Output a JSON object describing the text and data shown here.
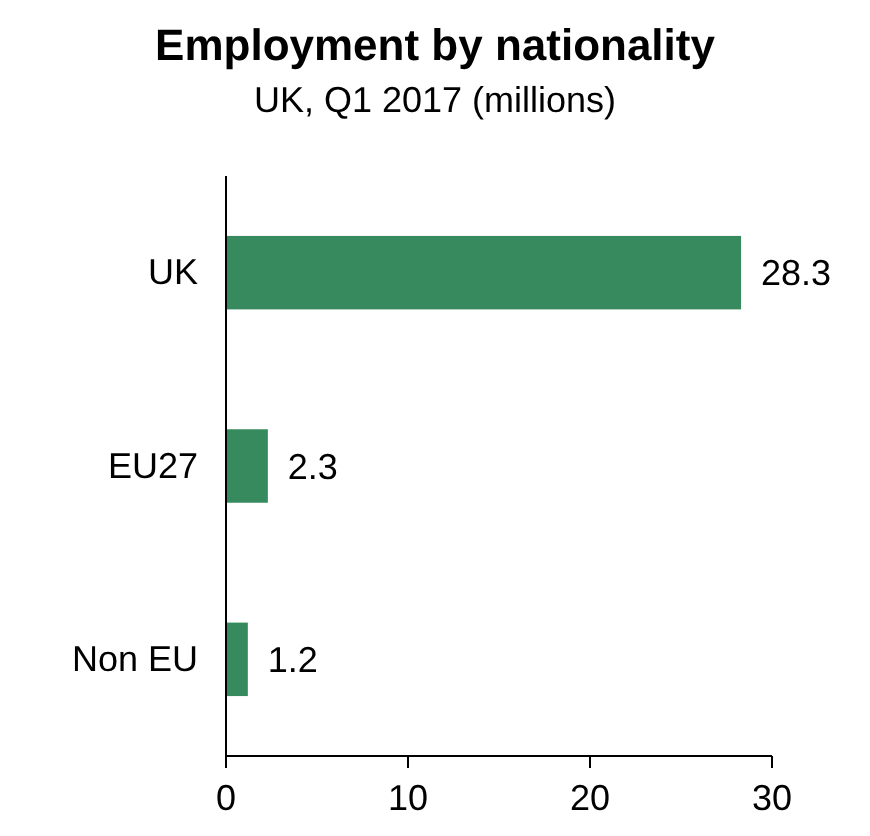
{
  "chart_data": {
    "type": "bar",
    "orientation": "horizontal",
    "title": "Employment by nationality",
    "subtitle": "UK, Q1 2017 (millions)",
    "categories": [
      "UK",
      "EU27",
      "Non EU"
    ],
    "values": [
      28.3,
      2.3,
      1.2
    ],
    "color": "#368a5e",
    "xlim": [
      0,
      30
    ],
    "xticks": [
      0,
      10,
      20,
      30
    ],
    "grid": false,
    "data_labels": true
  }
}
